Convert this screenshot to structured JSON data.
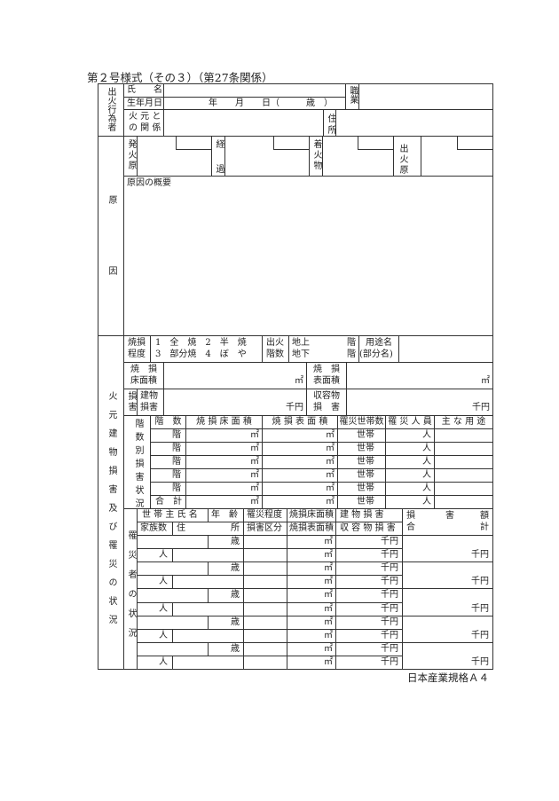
{
  "title": "第２号様式（その３）（第27条関係）",
  "footer": "日本産業規格Ａ４",
  "actor": {
    "section": "出火行為者",
    "name_label": "氏　　名",
    "birth_label": "生年月日",
    "birth_value": "年　　月　　日（　　　歳　）",
    "relation_label_1": "火 元 と",
    "relation_label_2": "の 関 係",
    "occupation_label": "職業",
    "address_label": "住所"
  },
  "cause": {
    "section": "原因",
    "ignition_source": "発火原",
    "process": "経過",
    "first_ignited": "着火物",
    "fire_cause": "出火原因",
    "summary": "原因の概要"
  },
  "building": {
    "section": "火元建物損害及び罹災の状況",
    "burn_degree_1": "焼損",
    "burn_degree_2": "程度",
    "degree_option_1": "1　全　焼　2　半　焼",
    "degree_option_2": "3　部分焼　4　ぼ　や",
    "fire_floor_1": "出火",
    "fire_floor_2": "階数",
    "above_ground": "地上",
    "below_ground": "地下",
    "floor_unit": "階",
    "use_name_1": "用途名",
    "use_name_2": "(部分名)",
    "floor_area_1": "焼　損",
    "floor_area_2": "床面積",
    "surface_area_1": "焼　損",
    "surface_area_2": "表面積",
    "sqm": "㎡",
    "damage": "損害",
    "building_damage_1": "建物",
    "building_damage_2": "損害",
    "contents_damage_1": "収容物",
    "contents_damage_2": "損　害",
    "kyen": "千円"
  },
  "floors": {
    "section": "階数別損害状況",
    "headers": [
      "階　数",
      "焼 損 床 面 積",
      "焼 損 表 面 積",
      "罹災世帯数",
      "罹 災 人 員",
      "主 な 用 途"
    ],
    "floor_unit": "階",
    "total": "合　計",
    "sqm": "㎡",
    "household_unit": "世帯",
    "person_unit": "人"
  },
  "victims": {
    "section": "罹災者の状況",
    "header_row1": [
      "世 帯 主 氏 名",
      "年　齢",
      "罹災程度",
      "焼損床面積",
      "建 物 損 害"
    ],
    "header_row2": [
      "家族数",
      "住",
      "所",
      "損害区分",
      "焼損表面積",
      "収 容 物 損 害"
    ],
    "total_header_1": [
      "損",
      "害",
      "額"
    ],
    "total_header_2": [
      "合",
      "計"
    ],
    "age_unit": "歳",
    "person_unit": "人",
    "sqm": "㎡",
    "kyen": "千円"
  }
}
